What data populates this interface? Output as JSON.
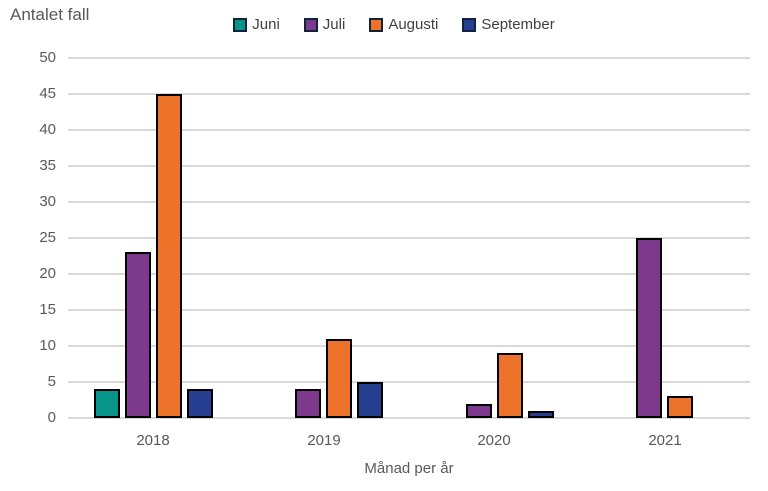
{
  "title": "Antalet fall",
  "x_axis_title": "Månad per år",
  "colors": {
    "gridline": "#d9d9d9",
    "axis_text": "#595959",
    "legend_text": "#404040",
    "bar_outline": "#000000"
  },
  "chart_data": {
    "type": "bar",
    "title": "Antalet fall",
    "xlabel": "Månad per år",
    "ylabel": "",
    "categories": [
      "2018",
      "2019",
      "2020",
      "2021"
    ],
    "series": [
      {
        "name": "Juni",
        "color": "#069689",
        "values": [
          4,
          0,
          0,
          0
        ]
      },
      {
        "name": "Juli",
        "color": "#7d3a8c",
        "values": [
          23,
          4,
          2,
          25
        ]
      },
      {
        "name": "Augusti",
        "color": "#ec7329",
        "values": [
          45,
          11,
          9,
          3
        ]
      },
      {
        "name": "September",
        "color": "#253e8f",
        "values": [
          4,
          5,
          1,
          0
        ]
      }
    ],
    "ylim": [
      0,
      50
    ],
    "yticks": [
      0,
      5,
      10,
      15,
      20,
      25,
      30,
      35,
      40,
      45,
      50
    ],
    "grid": true,
    "legend_position": "top-center"
  }
}
